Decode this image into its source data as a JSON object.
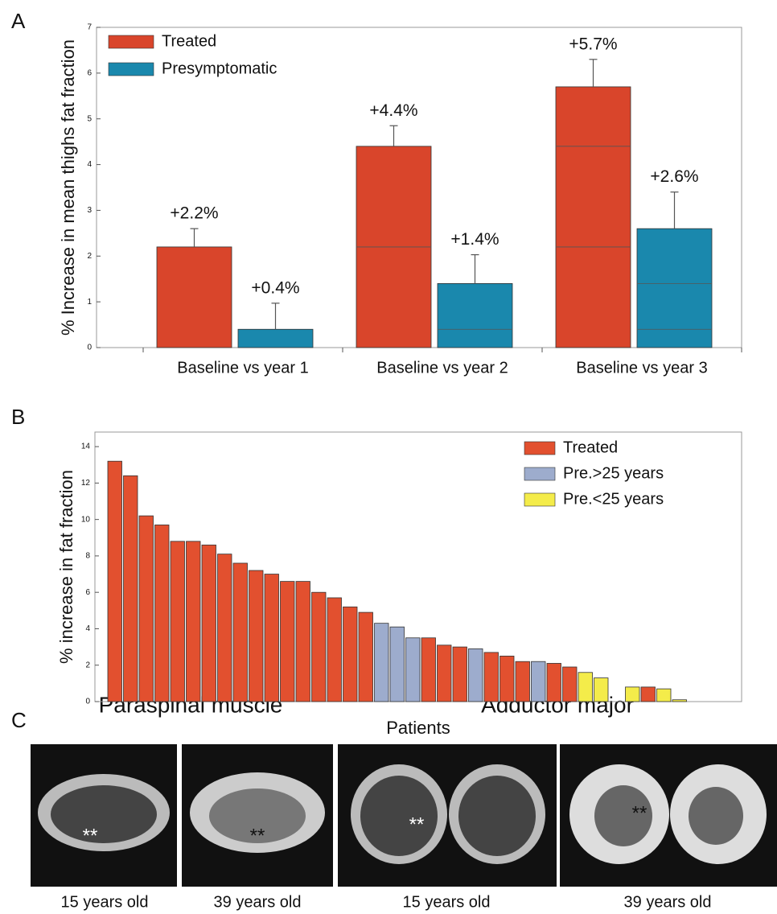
{
  "panel_labels": [
    "A",
    "B",
    "C"
  ],
  "chart_data": [
    {
      "type": "bar",
      "ylabel": "% Increase in mean thighs fat fraction",
      "categories": [
        "Baseline vs year 1",
        "Baseline vs year 2",
        "Baseline vs year 3"
      ],
      "series": [
        {
          "name": "Treated",
          "color": "#d9452b",
          "values": [
            2.2,
            4.4,
            5.7
          ],
          "value_labels": [
            "+2.2%",
            "+4.4%",
            "+5.7%"
          ],
          "errors": [
            0.4,
            0.45,
            0.6
          ]
        },
        {
          "name": "Presymptomatic",
          "color": "#1a88ad",
          "values": [
            0.4,
            1.4,
            2.6
          ],
          "value_labels": [
            "+0.4%",
            "+1.4%",
            "+2.6%"
          ],
          "errors": [
            0.57,
            0.63,
            0.8
          ]
        }
      ],
      "ylim": [
        0,
        7
      ],
      "yticks": [
        0,
        1,
        2,
        3,
        4,
        5,
        6,
        7
      ],
      "legend": "upper left"
    },
    {
      "type": "bar",
      "xlabel": "Patients",
      "ylabel": "% increase in fat fraction",
      "categories": [
        null,
        null,
        null,
        null,
        null,
        null,
        null,
        null,
        null,
        null,
        null,
        null,
        null,
        null,
        null,
        null,
        null,
        null,
        null,
        null,
        null,
        null,
        null,
        null,
        null,
        null,
        null,
        null,
        null,
        null,
        null,
        null,
        null,
        null,
        null,
        null,
        null
      ],
      "series": [
        {
          "name": "Treated",
          "color": "#e2502f",
          "values": [
            13.2,
            12.4,
            10.2,
            9.7,
            8.8,
            8.8,
            8.6,
            8.1,
            7.6,
            7.2,
            7.0,
            6.6,
            6.6,
            6.0,
            5.7,
            5.2,
            4.9,
            null,
            null,
            null,
            3.5,
            3.1,
            3.0,
            null,
            2.7,
            2.5,
            2.2,
            null,
            2.1,
            1.9,
            null,
            null,
            null,
            null,
            0.8,
            null,
            null
          ]
        },
        {
          "name": "Pre.>25 years",
          "color": "#9daccd",
          "values": [
            null,
            null,
            null,
            null,
            null,
            null,
            null,
            null,
            null,
            null,
            null,
            null,
            null,
            null,
            null,
            null,
            null,
            4.3,
            4.1,
            3.5,
            null,
            null,
            null,
            2.9,
            null,
            null,
            null,
            2.2,
            null,
            null,
            null,
            null,
            null,
            null,
            null,
            null,
            null
          ]
        },
        {
          "name": "Pre.<25 years",
          "color": "#f4ec4a",
          "values": [
            null,
            null,
            null,
            null,
            null,
            null,
            null,
            null,
            null,
            null,
            null,
            null,
            null,
            null,
            null,
            null,
            null,
            null,
            null,
            null,
            null,
            null,
            null,
            null,
            null,
            null,
            null,
            null,
            null,
            null,
            1.6,
            1.3,
            null,
            0.8,
            null,
            0.7,
            0.1
          ]
        }
      ],
      "ylim": [
        0,
        14.8
      ],
      "yticks": [
        0,
        2,
        4,
        6,
        8,
        10,
        12,
        14
      ],
      "legend": "upper right"
    }
  ],
  "panel_c": {
    "titles": [
      "Paraspinal muscle",
      "Adductor major"
    ],
    "image_marks": [
      "**",
      "**",
      "**",
      "**"
    ],
    "captions": [
      "15 years old",
      "39 years old",
      "15 years old",
      "39 years old"
    ]
  }
}
